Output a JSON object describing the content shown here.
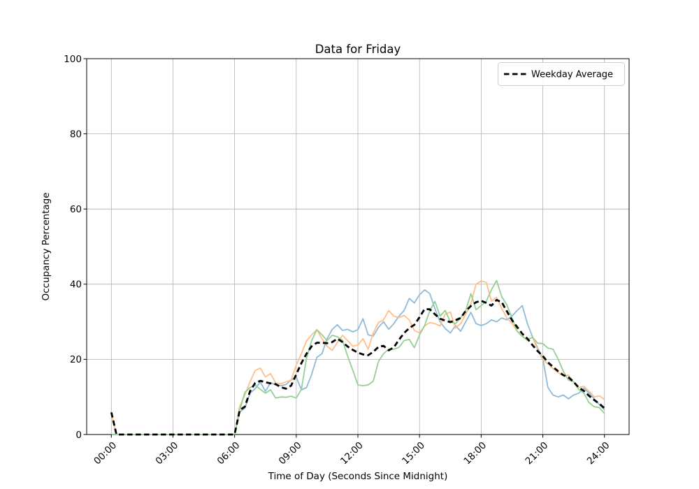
{
  "title": "Data for Friday",
  "axes": {
    "xlabel": "Time of Day (Seconds Since Midnight)",
    "ylabel": "Occupancy Percentage",
    "x_tick_hours": [
      0,
      3,
      6,
      9,
      12,
      15,
      18,
      21,
      24
    ],
    "x_tick_labels": [
      "00:00",
      "03:00",
      "06:00",
      "09:00",
      "12:00",
      "15:00",
      "18:00",
      "21:00",
      "24:00"
    ],
    "y_ticks": [
      0,
      20,
      40,
      60,
      80,
      100
    ],
    "y_tick_labels": [
      "0",
      "20",
      "40",
      "60",
      "80",
      "100"
    ],
    "xlim_hours": [
      -1.2,
      25.2
    ],
    "ylim": [
      0,
      100
    ],
    "grid": true,
    "grid_color": "#b0b0b0",
    "spine_color": "#000000"
  },
  "legend": {
    "position": "upper right",
    "entries": [
      {
        "label": "Weekday Average",
        "style": "dashed",
        "color": "#000000"
      }
    ]
  },
  "chart_data": {
    "type": "line",
    "title": "Data for Friday",
    "xlabel": "Time of Day (Seconds Since Midnight)",
    "ylabel": "Occupancy Percentage",
    "x_unit": "hours",
    "x_start": 0,
    "x_step": 0.25,
    "x_end": 24,
    "ylim": [
      0,
      100
    ],
    "grid": true,
    "legend_position": "upper right",
    "series": [
      {
        "name": "blue",
        "in_legend": false,
        "color": "#8fbbd9",
        "style": "solid",
        "values": [
          0,
          0,
          0,
          0,
          0,
          0,
          0,
          0,
          0,
          0,
          0,
          0,
          0,
          0,
          0,
          0,
          0,
          0,
          0,
          0,
          0,
          0,
          0,
          0,
          0,
          6.0,
          7.0,
          11.0,
          12.2,
          14.0,
          11.5,
          13.8,
          13.2,
          13.0,
          13.3,
          14.5,
          15.3,
          11.9,
          12.5,
          16.0,
          20.5,
          21.5,
          25.5,
          28.0,
          29.2,
          27.7,
          28.0,
          27.3,
          27.9,
          30.8,
          26.5,
          26.2,
          28.5,
          30.0,
          28.0,
          29.5,
          31.5,
          33.0,
          36.2,
          35.0,
          37.2,
          38.5,
          37.5,
          33.5,
          30.0,
          28.2,
          27.0,
          29.0,
          27.5,
          30.0,
          32.5,
          29.5,
          29.0,
          29.5,
          30.5,
          30.0,
          31.0,
          30.5,
          31.5,
          33.0,
          34.3,
          29.5,
          26.0,
          23.0,
          20.3,
          12.5,
          10.5,
          10.0,
          10.5,
          9.5,
          10.5,
          11.0,
          12.3,
          11.0,
          9.5,
          8.0,
          6.6
        ]
      },
      {
        "name": "orange",
        "in_legend": false,
        "color": "#ffbf86",
        "style": "solid",
        "values": [
          5.5,
          0,
          0,
          0,
          0,
          0,
          0,
          0,
          0,
          0,
          0,
          0,
          0,
          0,
          0,
          0,
          0,
          0,
          0,
          0,
          0,
          0,
          0,
          0,
          0,
          7.5,
          10.5,
          14.0,
          17.0,
          17.7,
          15.3,
          16.2,
          13.7,
          13.5,
          14.0,
          14.5,
          18.5,
          21.5,
          24.9,
          26.5,
          27.9,
          25.5,
          23.5,
          22.4,
          24.5,
          26.4,
          25.0,
          23.5,
          23.8,
          25.5,
          22.7,
          27.0,
          29.8,
          30.5,
          33.0,
          31.5,
          31.1,
          31.7,
          30.5,
          27.7,
          27.0,
          28.9,
          29.8,
          29.5,
          28.9,
          32.0,
          32.6,
          28.3,
          29.5,
          32.0,
          34.8,
          40.0,
          40.8,
          40.5,
          35.5,
          36.5,
          33.5,
          31.0,
          29.6,
          27.5,
          26.1,
          25.3,
          25.9,
          22.5,
          19.9,
          18.8,
          17.5,
          16.5,
          15.6,
          15.8,
          14.0,
          12.5,
          12.8,
          11.5,
          10.0,
          10.3,
          9.3
        ]
      },
      {
        "name": "green",
        "in_legend": false,
        "color": "#95cf95",
        "style": "solid",
        "values": [
          0,
          0,
          0,
          0,
          0,
          0,
          0,
          0,
          0,
          0,
          0,
          0,
          0,
          0,
          0,
          0,
          0,
          0,
          0,
          0,
          0,
          0,
          0,
          0,
          0,
          6.5,
          11.2,
          12.5,
          13.2,
          12.0,
          11.0,
          11.9,
          9.7,
          10.0,
          9.9,
          10.2,
          9.7,
          12.0,
          20.3,
          25.0,
          27.9,
          26.5,
          25.0,
          26.4,
          26.0,
          25.1,
          20.9,
          17.1,
          13.2,
          13.0,
          13.2,
          14.2,
          19.4,
          21.5,
          22.7,
          22.7,
          23.2,
          25.0,
          25.3,
          23.1,
          26.5,
          29.0,
          33.0,
          35.4,
          31.5,
          33.0,
          30.0,
          29.5,
          31.0,
          33.0,
          37.5,
          33.2,
          34.3,
          35.5,
          38.5,
          41.0,
          36.7,
          34.5,
          31.0,
          27.5,
          26.1,
          25.1,
          25.9,
          24.3,
          24.2,
          23.0,
          22.7,
          20.0,
          16.8,
          14.5,
          14.0,
          12.0,
          11.0,
          8.5,
          7.4,
          7.2,
          5.6
        ]
      },
      {
        "name": "Weekday Average",
        "in_legend": true,
        "color": "#000000",
        "style": "dashed",
        "values": [
          5.9,
          0,
          0,
          0,
          0,
          0,
          0,
          0,
          0,
          0,
          0,
          0,
          0,
          0,
          0,
          0,
          0,
          0,
          0,
          0,
          0,
          0,
          0,
          0,
          0,
          6.5,
          7.4,
          11.5,
          13.7,
          14.3,
          13.9,
          13.6,
          13.4,
          12.6,
          12.2,
          13.0,
          16.0,
          19.0,
          21.5,
          23.5,
          24.4,
          24.4,
          24.3,
          24.6,
          25.5,
          24.6,
          23.4,
          22.5,
          21.8,
          21.3,
          21.1,
          22.0,
          23.3,
          23.6,
          22.4,
          23.2,
          25.2,
          27.0,
          28.3,
          29.2,
          31.2,
          33.4,
          33.3,
          32.0,
          30.8,
          30.3,
          29.9,
          30.4,
          31.0,
          32.9,
          34.2,
          35.2,
          35.6,
          35.0,
          34.3,
          35.8,
          35.2,
          32.8,
          30.4,
          28.6,
          26.8,
          25.5,
          23.8,
          22.2,
          20.9,
          19.2,
          18.0,
          16.8,
          15.8,
          15.2,
          14.0,
          12.5,
          11.6,
          10.3,
          9.2,
          8.2,
          7.0
        ]
      }
    ]
  }
}
